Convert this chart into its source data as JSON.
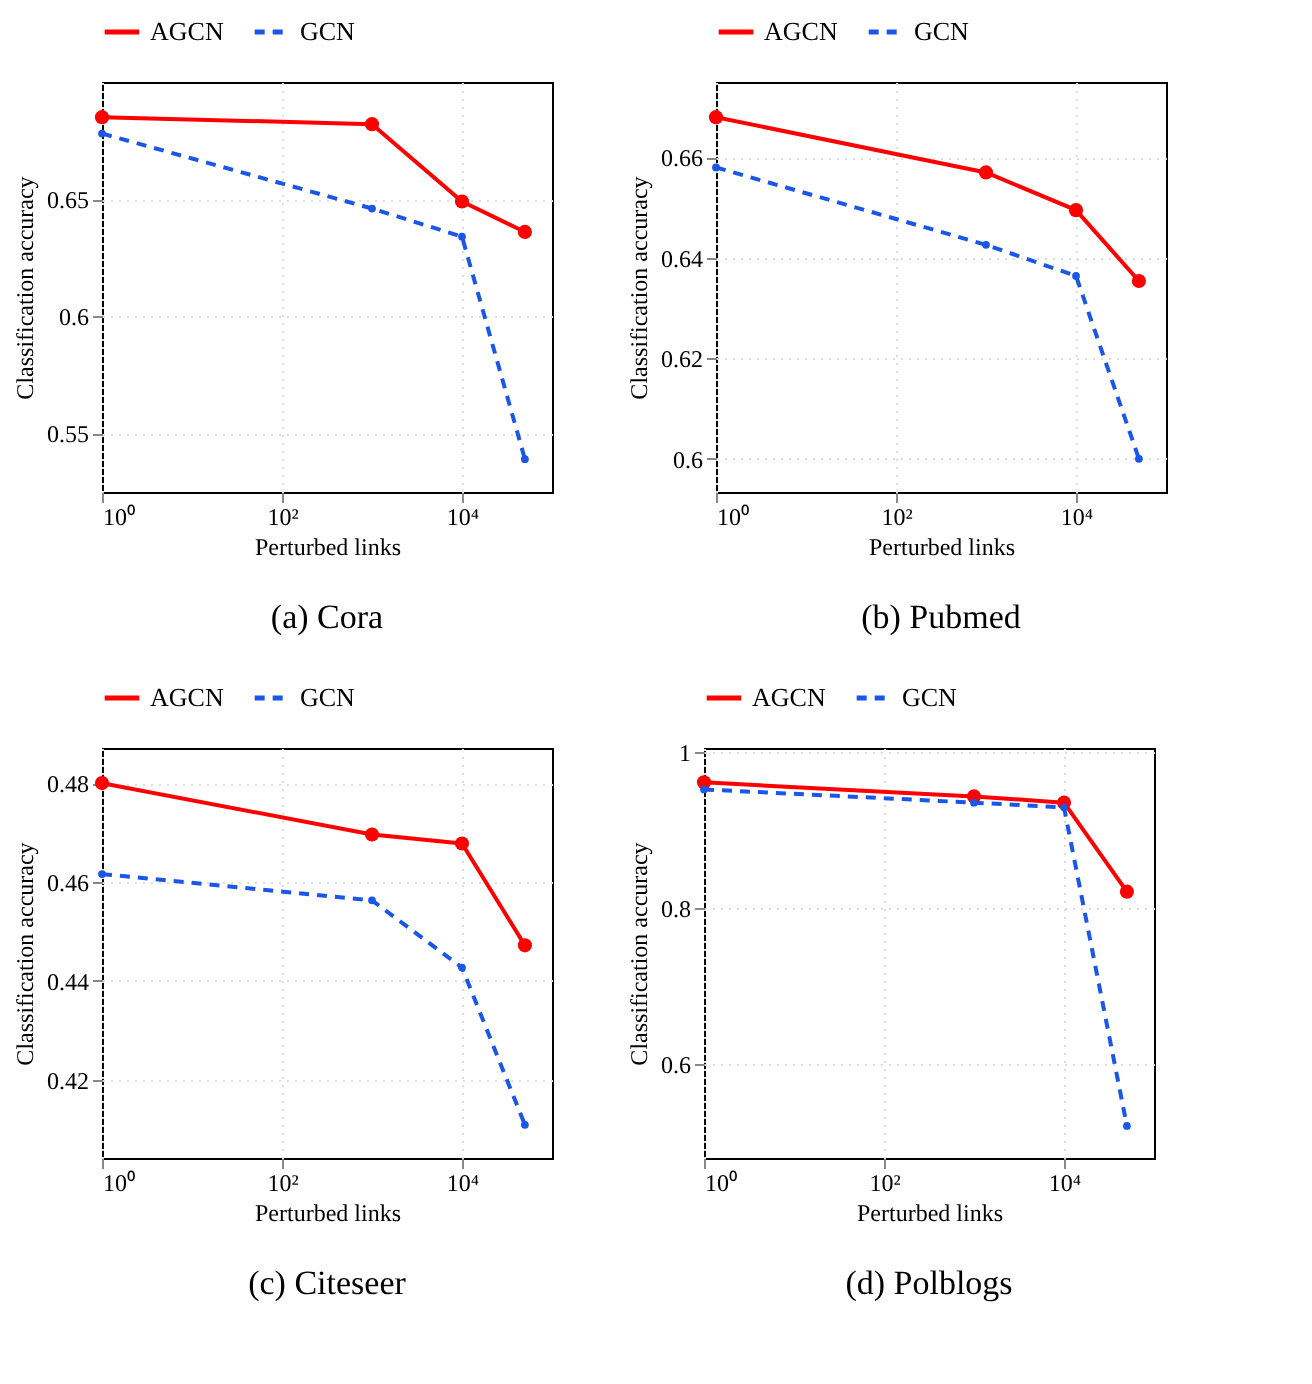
{
  "chart_data": [
    {
      "type": "line",
      "title": "(a) Cora",
      "xlabel": "Perturbed links",
      "ylabel": "Classification accuracy",
      "log": "x",
      "x": [
        1,
        1000,
        10000,
        50000
      ],
      "series": [
        {
          "name": "AGCN",
          "color": "#ff0000",
          "line_style": "solid",
          "values": [
            0.685,
            0.682,
            0.649,
            0.636
          ]
        },
        {
          "name": "GCN",
          "color": "#1a56e8",
          "line_style": "dashed",
          "values": [
            0.678,
            0.646,
            0.634,
            0.539
          ]
        }
      ],
      "xlim": [
        1,
        100000
      ],
      "xticks": [
        {
          "value": 1,
          "label": "10⁰"
        },
        {
          "value": 100,
          "label": "10²"
        },
        {
          "value": 10000,
          "label": "10⁴"
        }
      ],
      "ylim": [
        0.525,
        0.7
      ],
      "yticks": [
        0.55,
        0.6,
        0.65
      ],
      "grid": true,
      "legend": "top",
      "marker": "circle"
    },
    {
      "type": "line",
      "title": "(b) Pubmed",
      "xlabel": "Perturbed links",
      "ylabel": "Classification accuracy",
      "log": "x",
      "x": [
        1,
        1000,
        10000,
        50000
      ],
      "series": [
        {
          "name": "AGCN",
          "color": "#ff0000",
          "line_style": "solid",
          "values": [
            0.668,
            0.657,
            0.6495,
            0.6354
          ]
        },
        {
          "name": "GCN",
          "color": "#1a56e8",
          "line_style": "dashed",
          "values": [
            0.658,
            0.6426,
            0.6364,
            0.6
          ]
        }
      ],
      "xlim": [
        1,
        100000
      ],
      "xticks": [
        {
          "value": 1,
          "label": "10⁰"
        },
        {
          "value": 100,
          "label": "10²"
        },
        {
          "value": 10000,
          "label": "10⁴"
        }
      ],
      "ylim": [
        0.5934,
        0.675
      ],
      "yticks": [
        0.6,
        0.62,
        0.64,
        0.66
      ],
      "grid": true,
      "legend": "top",
      "marker": "circle"
    },
    {
      "type": "line",
      "title": "(c) Citeseer",
      "xlabel": "Perturbed links",
      "ylabel": "Classification accuracy",
      "log": "x",
      "x": [
        1,
        1000,
        10000,
        50000
      ],
      "series": [
        {
          "name": "AGCN",
          "color": "#ff0000",
          "line_style": "solid",
          "values": [
            0.48,
            0.4696,
            0.4678,
            0.4472
          ]
        },
        {
          "name": "GCN",
          "color": "#1a56e8",
          "line_style": "dashed",
          "values": [
            0.4616,
            0.4563,
            0.4427,
            0.4109
          ]
        }
      ],
      "xlim": [
        1,
        100000
      ],
      "xticks": [
        {
          "value": 1,
          "label": "10⁰"
        },
        {
          "value": 100,
          "label": "10²"
        },
        {
          "value": 10000,
          "label": "10⁴"
        }
      ],
      "ylim": [
        0.4042,
        0.4871
      ],
      "yticks": [
        0.42,
        0.44,
        0.46,
        0.48
      ],
      "grid": true,
      "legend": "top",
      "marker": "circle"
    },
    {
      "type": "line",
      "title": "(d) Polblogs",
      "xlabel": "Perturbed links",
      "ylabel": "Classification accuracy",
      "log": "x",
      "x": [
        1,
        1000,
        10000,
        50000
      ],
      "series": [
        {
          "name": "AGCN",
          "color": "#ff0000",
          "line_style": "solid",
          "values": [
            0.961,
            0.943,
            0.935,
            0.821
          ]
        },
        {
          "name": "GCN",
          "color": "#1a56e8",
          "line_style": "dashed",
          "values": [
            0.952,
            0.935,
            0.929,
            0.521
          ]
        }
      ],
      "xlim": [
        1,
        100000
      ],
      "xticks": [
        {
          "value": 1,
          "label": "10⁰"
        },
        {
          "value": 100,
          "label": "10²"
        },
        {
          "value": 10000,
          "label": "10⁴"
        }
      ],
      "ylim": [
        0.48,
        1.005
      ],
      "yticks": [
        0.6,
        0.8,
        1
      ],
      "grid": true,
      "legend": "top",
      "marker": "circle"
    }
  ]
}
